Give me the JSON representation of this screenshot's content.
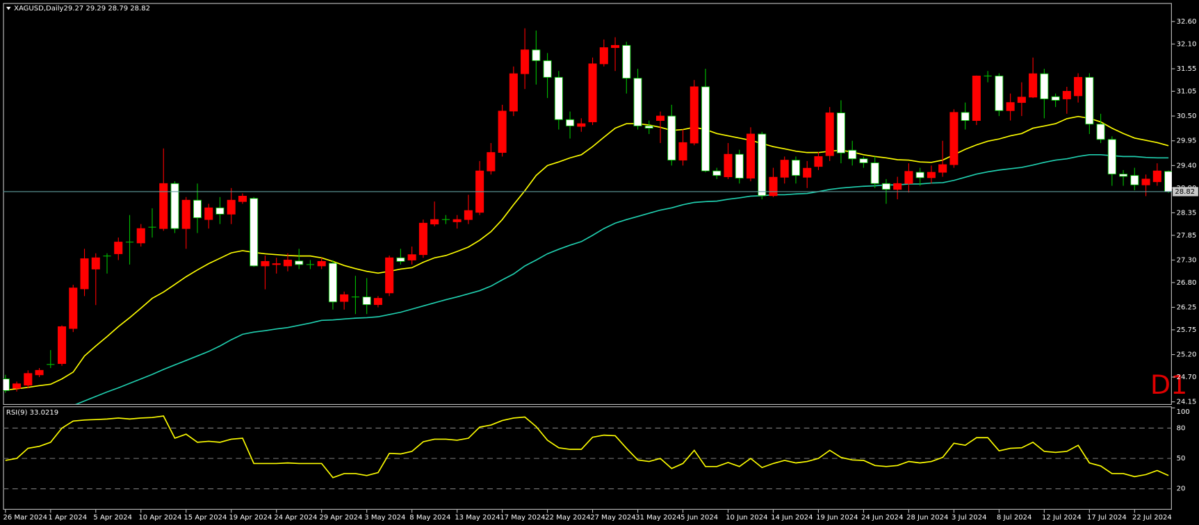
{
  "chart_data": [
    {
      "type": "candlestick",
      "title": "XAGUSD,Daily",
      "ohlc_label": "29.27 29.29 28.79 28.82",
      "annotation": "D1",
      "categories": [
        "26 Mar 2024",
        null,
        null,
        null,
        "1 Apr 2024",
        null,
        null,
        null,
        "5 Apr 2024",
        null,
        null,
        null,
        "10 Apr 2024",
        null,
        null,
        null,
        "15 Apr 2024",
        null,
        null,
        null,
        "19 Apr 2024",
        null,
        null,
        null,
        "24 Apr 2024",
        null,
        null,
        null,
        "29 Apr 2024",
        null,
        null,
        null,
        "3 May 2024",
        null,
        null,
        null,
        "8 May 2024",
        null,
        null,
        null,
        "13 May 2024",
        null,
        null,
        null,
        "17 May 2024",
        null,
        null,
        null,
        "22 May 2024",
        null,
        null,
        null,
        "27 May 2024",
        null,
        null,
        null,
        "31 May 2024",
        null,
        null,
        null,
        "5 Jun 2024",
        null,
        null,
        null,
        "10 Jun 2024",
        null,
        null,
        null,
        "14 Jun 2024",
        null,
        null,
        null,
        "19 Jun 2024",
        null,
        null,
        null,
        "24 Jun 2024",
        null,
        null,
        null,
        "28 Jun 2024",
        null,
        null,
        null,
        "3 Jul 2024",
        null,
        null,
        null,
        "8 Jul 2024",
        null,
        null,
        null,
        "12 Jul 2024",
        null,
        null,
        null,
        "17 Jul 2024",
        null,
        null,
        null,
        "22 Jul 2024",
        null,
        null,
        null
      ],
      "open": [
        24.66,
        24.45,
        24.52,
        24.75,
        24.98,
        25.0,
        25.78,
        26.66,
        27.1,
        27.39,
        27.44,
        27.7,
        27.68,
        28.03,
        28.0,
        29.0,
        28.0,
        28.63,
        28.2,
        28.46,
        28.32,
        28.6,
        28.67,
        27.17,
        27.2,
        27.17,
        27.28,
        27.2,
        27.17,
        27.23,
        26.38,
        26.48,
        26.48,
        26.31,
        26.57,
        27.35,
        27.3,
        27.42,
        28.1,
        28.2,
        28.15,
        28.2,
        28.36,
        29.28,
        29.69,
        30.61,
        31.44,
        31.97,
        31.73,
        31.36,
        30.42,
        30.27,
        30.37,
        31.66,
        32.02,
        32.07,
        31.34,
        30.28,
        30.4,
        30.5,
        29.52,
        29.9,
        31.15,
        29.28,
        29.15,
        29.65,
        29.12,
        30.1,
        28.73,
        29.14,
        29.52,
        29.14,
        29.38,
        29.62,
        30.57,
        29.74,
        29.55,
        29.46,
        29.0,
        28.87,
        29.0,
        29.25,
        29.13,
        29.25,
        29.42,
        30.58,
        30.4,
        31.39,
        31.39,
        30.62,
        30.8,
        30.92,
        31.44,
        30.93,
        30.88,
        30.95,
        31.36,
        30.32,
        29.98,
        29.21,
        29.18,
        28.97,
        29.04,
        29.27
      ],
      "high": [
        24.75,
        24.6,
        24.85,
        24.9,
        25.3,
        25.85,
        26.75,
        27.55,
        27.45,
        27.45,
        27.8,
        28.3,
        28.1,
        28.45,
        29.78,
        29.05,
        28.7,
        29.0,
        28.55,
        28.7,
        28.9,
        28.78,
        28.7,
        27.4,
        27.35,
        27.45,
        27.55,
        27.3,
        27.35,
        27.3,
        26.6,
        26.95,
        26.9,
        26.5,
        27.4,
        27.55,
        27.6,
        28.2,
        28.6,
        28.3,
        28.3,
        28.75,
        29.5,
        29.9,
        30.75,
        31.6,
        32.45,
        32.4,
        31.9,
        31.5,
        30.6,
        30.45,
        31.8,
        32.2,
        32.25,
        32.15,
        31.55,
        30.4,
        30.6,
        30.75,
        30.2,
        31.3,
        31.55,
        29.35,
        29.9,
        29.75,
        30.25,
        30.15,
        29.35,
        29.6,
        29.6,
        29.5,
        29.7,
        30.7,
        30.85,
        29.95,
        29.6,
        29.6,
        29.1,
        29.15,
        29.45,
        29.35,
        29.4,
        29.95,
        30.65,
        30.8,
        31.4,
        31.5,
        31.45,
        31.0,
        31.25,
        31.8,
        31.55,
        31.0,
        31.15,
        31.45,
        31.45,
        30.55,
        30.05,
        29.3,
        29.35,
        29.2,
        29.45,
        29.29
      ],
      "low": [
        24.35,
        24.38,
        24.45,
        24.7,
        24.9,
        24.95,
        25.7,
        26.5,
        26.3,
        27.0,
        27.3,
        27.2,
        27.6,
        27.8,
        27.95,
        27.9,
        27.55,
        27.9,
        28.0,
        28.1,
        28.1,
        28.55,
        27.15,
        26.65,
        27.0,
        27.05,
        27.1,
        27.1,
        27.1,
        26.2,
        26.2,
        26.1,
        26.1,
        26.25,
        26.5,
        27.2,
        27.2,
        27.35,
        28.05,
        28.1,
        28.0,
        28.1,
        28.3,
        29.2,
        29.6,
        30.5,
        31.1,
        31.2,
        30.9,
        30.2,
        30.0,
        30.15,
        30.3,
        31.6,
        31.5,
        31.0,
        30.2,
        30.1,
        29.9,
        29.4,
        29.4,
        29.85,
        29.25,
        29.1,
        29.1,
        29.0,
        29.05,
        28.65,
        28.7,
        29.0,
        29.0,
        28.9,
        29.3,
        29.5,
        29.45,
        29.4,
        29.35,
        28.9,
        28.55,
        28.65,
        28.8,
        28.95,
        29.0,
        29.15,
        29.35,
        30.2,
        30.3,
        31.25,
        30.5,
        30.4,
        30.5,
        30.9,
        30.45,
        30.7,
        30.55,
        30.8,
        30.1,
        29.9,
        28.95,
        28.95,
        28.85,
        28.72,
        28.95,
        28.79
      ],
      "close": [
        24.4,
        24.55,
        24.78,
        24.85,
        24.98,
        25.82,
        26.68,
        27.33,
        27.35,
        27.39,
        27.7,
        27.7,
        28.0,
        28.03,
        29.0,
        28.0,
        28.63,
        28.24,
        28.46,
        28.32,
        28.63,
        28.72,
        27.17,
        27.27,
        27.22,
        27.3,
        27.2,
        27.2,
        27.27,
        26.37,
        26.53,
        26.48,
        26.31,
        26.45,
        27.35,
        27.27,
        27.42,
        28.12,
        28.2,
        28.2,
        28.2,
        28.4,
        29.28,
        29.69,
        30.61,
        31.44,
        31.97,
        31.73,
        31.36,
        30.42,
        30.28,
        30.33,
        31.66,
        32.02,
        32.07,
        31.34,
        30.28,
        30.23,
        30.5,
        29.52,
        29.91,
        31.15,
        29.28,
        29.18,
        29.65,
        29.12,
        30.1,
        28.73,
        29.14,
        29.52,
        29.18,
        29.34,
        29.6,
        30.57,
        29.68,
        29.55,
        29.46,
        29.0,
        28.87,
        29.0,
        29.27,
        29.13,
        29.25,
        29.42,
        30.58,
        30.4,
        31.39,
        31.39,
        30.62,
        30.8,
        30.92,
        31.44,
        30.88,
        30.85,
        31.05,
        31.36,
        30.32,
        29.98,
        29.21,
        29.16,
        28.97,
        29.1,
        29.28,
        28.82
      ],
      "up_color": "#ff0000",
      "down_color": "#ffffff",
      "doji_color": "#00c000",
      "series": [
        {
          "color": "#ffff00",
          "values": [
            24.41,
            24.44,
            24.47,
            24.51,
            24.54,
            24.66,
            24.81,
            25.17,
            25.39,
            25.6,
            25.82,
            26.02,
            26.23,
            26.45,
            26.59,
            26.76,
            26.93,
            27.08,
            27.22,
            27.34,
            27.46,
            27.51,
            27.47,
            27.44,
            27.42,
            27.4,
            27.39,
            27.39,
            27.35,
            27.27,
            27.18,
            27.11,
            27.05,
            27.01,
            27.05,
            27.1,
            27.13,
            27.25,
            27.35,
            27.4,
            27.49,
            27.59,
            27.74,
            27.93,
            28.2,
            28.53,
            28.84,
            29.18,
            29.4,
            29.48,
            29.57,
            29.64,
            29.82,
            30.03,
            30.23,
            30.33,
            30.33,
            30.3,
            30.25,
            30.18,
            30.2,
            30.25,
            30.2,
            30.11,
            30.06,
            30.01,
            29.96,
            29.89,
            29.82,
            29.77,
            29.72,
            29.69,
            29.69,
            29.72,
            29.74,
            29.7,
            29.64,
            29.6,
            29.57,
            29.53,
            29.52,
            29.48,
            29.47,
            29.52,
            29.64,
            29.76,
            29.86,
            29.94,
            29.99,
            30.06,
            30.11,
            30.23,
            30.28,
            30.33,
            30.44,
            30.49,
            30.45,
            30.37,
            30.23,
            30.11,
            30.01,
            29.96,
            29.91,
            29.84
          ]
        },
        {
          "color": "#20d0b0",
          "values": [
            null,
            null,
            null,
            null,
            null,
            null,
            24.07,
            24.17,
            24.27,
            24.37,
            24.46,
            24.56,
            24.66,
            24.76,
            24.87,
            24.97,
            25.07,
            25.17,
            25.27,
            25.39,
            25.53,
            25.65,
            25.7,
            25.73,
            25.77,
            25.8,
            25.85,
            25.9,
            25.96,
            25.97,
            25.99,
            26.01,
            26.02,
            26.04,
            26.09,
            26.14,
            26.21,
            26.28,
            26.35,
            26.42,
            26.48,
            26.55,
            26.62,
            26.72,
            26.86,
            26.99,
            27.17,
            27.3,
            27.44,
            27.54,
            27.63,
            27.71,
            27.85,
            28.0,
            28.12,
            28.2,
            28.27,
            28.34,
            28.41,
            28.46,
            28.53,
            28.58,
            28.6,
            28.61,
            28.65,
            28.68,
            28.72,
            28.73,
            28.75,
            28.75,
            28.77,
            28.78,
            28.82,
            28.87,
            28.9,
            28.92,
            28.94,
            28.95,
            28.97,
            28.97,
            28.99,
            28.99,
            29.01,
            29.02,
            29.07,
            29.14,
            29.21,
            29.26,
            29.3,
            29.33,
            29.36,
            29.41,
            29.47,
            29.52,
            29.55,
            29.6,
            29.64,
            29.64,
            29.62,
            29.6,
            29.6,
            29.58,
            29.57,
            29.57
          ]
        }
      ],
      "last_price": {
        "value": 28.82,
        "label": "28.82",
        "color": "#5f9ea0"
      },
      "ylim": [
        24.1,
        33.01
      ],
      "yticks": [
        {
          "value": 32.6,
          "label": "32.60"
        },
        {
          "value": 32.1,
          "label": "32.10"
        },
        {
          "value": 31.55,
          "label": "31.55"
        },
        {
          "value": 31.05,
          "label": "31.05"
        },
        {
          "value": 30.5,
          "label": "30.50"
        },
        {
          "value": 29.95,
          "label": "29.95"
        },
        {
          "value": 29.4,
          "label": "29.40"
        },
        {
          "value": 28.9,
          "label": "28.90"
        },
        {
          "value": 28.35,
          "label": "28.35"
        },
        {
          "value": 27.85,
          "label": "27.85"
        },
        {
          "value": 27.3,
          "label": "27.30"
        },
        {
          "value": 26.8,
          "label": "26.80"
        },
        {
          "value": 26.25,
          "label": "26.25"
        },
        {
          "value": 25.75,
          "label": "25.75"
        },
        {
          "value": 25.2,
          "label": "25.20"
        },
        {
          "value": 24.7,
          "label": "24.70"
        },
        {
          "value": 24.15,
          "label": "24.15"
        }
      ]
    },
    {
      "type": "line",
      "title": "RSI(9) 33.0219",
      "color": "#ffff00",
      "values": [
        48,
        50,
        60,
        62,
        66,
        80,
        87,
        88,
        88.5,
        89,
        90,
        89,
        90,
        90.5,
        92,
        70,
        74,
        66,
        67,
        66,
        69,
        70,
        45,
        45,
        45,
        45.5,
        45,
        45,
        45,
        31,
        35,
        35,
        33,
        36,
        55,
        54.5,
        57,
        66.5,
        69,
        69,
        68,
        70,
        81,
        83,
        87.5,
        90,
        91,
        81.5,
        68,
        60.5,
        59,
        59,
        71,
        73,
        72.5,
        60,
        48.5,
        47,
        50,
        40,
        45,
        58,
        42,
        42,
        46,
        42,
        50,
        41,
        45,
        48,
        45.5,
        47,
        50,
        58,
        51,
        48.5,
        48,
        43,
        42,
        43,
        47,
        45.5,
        47,
        51,
        65,
        63,
        70.5,
        70.5,
        57.5,
        60,
        60.5,
        66,
        57,
        56,
        57,
        63,
        45.5,
        42.5,
        35,
        35,
        32,
        34,
        38,
        33.0219
      ],
      "ylim": [
        0,
        100
      ],
      "yticks": [
        20,
        50,
        80,
        100
      ],
      "level_color": "#808080"
    }
  ]
}
